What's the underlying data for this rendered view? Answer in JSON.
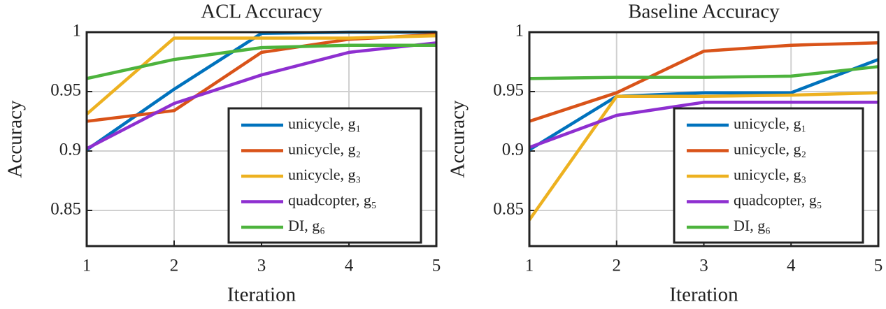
{
  "chart_data": [
    {
      "type": "line",
      "title": "ACL Accuracy",
      "xlabel": "Iteration",
      "ylabel": "Accuracy",
      "x": [
        1,
        2,
        3,
        4,
        5
      ],
      "xlim": [
        1,
        5
      ],
      "xticks": [
        1,
        2,
        3,
        4,
        5
      ],
      "ylim": [
        0.82,
        1
      ],
      "yticks": [
        0.85,
        0.9,
        0.95,
        1
      ],
      "grid": true,
      "legend": "southeast",
      "series": [
        {
          "name": "unicycle, g₁",
          "color": "#0072bd",
          "values": [
            0.901,
            0.952,
            0.999,
            1.0,
            1.0
          ]
        },
        {
          "name": "unicycle, g₂",
          "color": "#d95319",
          "values": [
            0.925,
            0.934,
            0.983,
            0.994,
            0.998
          ]
        },
        {
          "name": "unicycle, g₃",
          "color": "#edb120",
          "values": [
            0.931,
            0.995,
            0.995,
            0.995,
            0.997
          ]
        },
        {
          "name": "quadcopter, g₅",
          "color": "#8e2fd0",
          "values": [
            0.902,
            0.94,
            0.964,
            0.983,
            0.991
          ]
        },
        {
          "name": "DI, g₆",
          "color": "#4db33d",
          "values": [
            0.961,
            0.977,
            0.987,
            0.989,
            0.989
          ]
        }
      ]
    },
    {
      "type": "line",
      "title": "Baseline Accuracy",
      "xlabel": "Iteration",
      "ylabel": "Accuracy",
      "x": [
        1,
        2,
        3,
        4,
        5
      ],
      "xlim": [
        1,
        5
      ],
      "xticks": [
        1,
        2,
        3,
        4,
        5
      ],
      "ylim": [
        0.82,
        1
      ],
      "yticks": [
        0.85,
        0.9,
        0.95,
        1
      ],
      "grid": true,
      "legend": "southeast",
      "series": [
        {
          "name": "unicycle, g₁",
          "color": "#0072bd",
          "values": [
            0.901,
            0.946,
            0.949,
            0.949,
            0.977
          ]
        },
        {
          "name": "unicycle, g₂",
          "color": "#d95319",
          "values": [
            0.925,
            0.949,
            0.984,
            0.989,
            0.991
          ]
        },
        {
          "name": "unicycle, g₃",
          "color": "#edb120",
          "values": [
            0.842,
            0.946,
            0.946,
            0.947,
            0.949
          ]
        },
        {
          "name": "quadcopter, g₅",
          "color": "#8e2fd0",
          "values": [
            0.903,
            0.93,
            0.941,
            0.941,
            0.941
          ]
        },
        {
          "name": "DI, g₆",
          "color": "#4db33d",
          "values": [
            0.961,
            0.962,
            0.962,
            0.963,
            0.971
          ]
        }
      ]
    }
  ]
}
